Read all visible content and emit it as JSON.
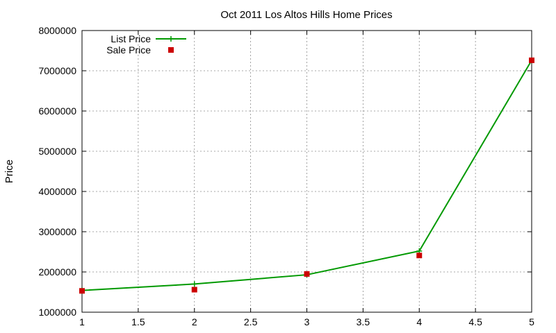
{
  "chart_data": {
    "type": "line",
    "title": "Oct 2011 Los Altos Hills Home Prices",
    "xlabel": "",
    "ylabel": "Price",
    "xlim": [
      1,
      5
    ],
    "ylim": [
      1000000,
      8000000
    ],
    "x_ticks": [
      "1",
      "1.5",
      "2",
      "2.5",
      "3",
      "3.5",
      "4",
      "4.5",
      "5"
    ],
    "y_ticks": [
      "1000000",
      "2000000",
      "3000000",
      "4000000",
      "5000000",
      "6000000",
      "7000000",
      "8000000"
    ],
    "grid": true,
    "legend_position": "top-left",
    "x": [
      1,
      2,
      3,
      4,
      5
    ],
    "series": [
      {
        "name": "List Price",
        "style": "line-with-plus-markers",
        "color": "#009900",
        "values": [
          1540000,
          1700000,
          1930000,
          2520000,
          7260000
        ]
      },
      {
        "name": "Sale Price",
        "style": "square-markers",
        "color": "#cc0000",
        "values": [
          1530000,
          1560000,
          1950000,
          2410000,
          7260000
        ]
      }
    ]
  }
}
